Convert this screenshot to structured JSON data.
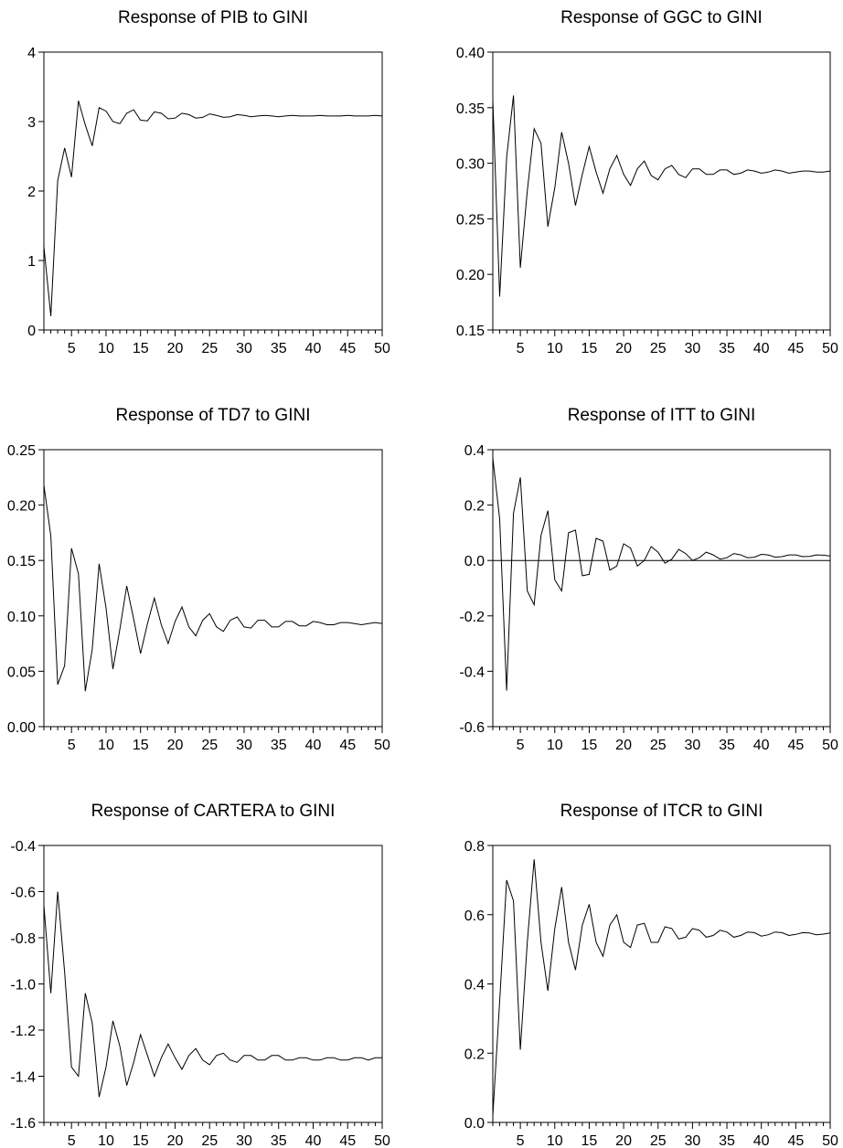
{
  "chart_data": [
    {
      "type": "line",
      "title": "Response of PIB to GINI",
      "ylim": [
        0,
        4
      ],
      "yticks": [
        0,
        1,
        2,
        3,
        4
      ],
      "ytick_labels": [
        "0",
        "1",
        "2",
        "3",
        "4"
      ],
      "xlim": [
        1,
        50
      ],
      "xtick_labels": [
        "5",
        "10",
        "15",
        "20",
        "25",
        "30",
        "35",
        "40",
        "45",
        "50"
      ],
      "zero_line": false,
      "series": [
        {
          "x": [
            1,
            2,
            3,
            4,
            5,
            6,
            7,
            8,
            9,
            10,
            11,
            12,
            13,
            14,
            15,
            16,
            17,
            18,
            19,
            20,
            21,
            22,
            23,
            24,
            25,
            26,
            27,
            28,
            29,
            30,
            31,
            32,
            33,
            34,
            35,
            36,
            37,
            38,
            39,
            40,
            41,
            42,
            43,
            44,
            45,
            46,
            47,
            48,
            49,
            50
          ],
          "values": [
            1.2,
            0.2,
            2.15,
            2.62,
            2.2,
            3.3,
            2.95,
            2.65,
            3.2,
            3.15,
            3.0,
            2.97,
            3.12,
            3.17,
            3.02,
            3.01,
            3.14,
            3.12,
            3.04,
            3.05,
            3.12,
            3.1,
            3.05,
            3.06,
            3.11,
            3.09,
            3.06,
            3.07,
            3.1,
            3.09,
            3.07,
            3.08,
            3.09,
            3.08,
            3.07,
            3.08,
            3.09,
            3.08,
            3.08,
            3.08,
            3.09,
            3.08,
            3.08,
            3.08,
            3.09,
            3.08,
            3.08,
            3.08,
            3.09,
            3.08
          ]
        }
      ]
    },
    {
      "type": "line",
      "title": "Response of GGC to GINI",
      "ylim": [
        0.15,
        0.4
      ],
      "yticks": [
        0.15,
        0.2,
        0.25,
        0.3,
        0.35,
        0.4
      ],
      "ytick_labels": [
        "0.15",
        "0.20",
        "0.25",
        "0.30",
        "0.35",
        "0.40"
      ],
      "xlim": [
        1,
        50
      ],
      "xtick_labels": [
        "5",
        "10",
        "15",
        "20",
        "25",
        "30",
        "35",
        "40",
        "45",
        "50"
      ],
      "zero_line": false,
      "series": [
        {
          "x": [
            1,
            2,
            3,
            4,
            5,
            6,
            7,
            8,
            9,
            10,
            11,
            12,
            13,
            14,
            15,
            16,
            17,
            18,
            19,
            20,
            21,
            22,
            23,
            24,
            25,
            26,
            27,
            28,
            29,
            30,
            31,
            32,
            33,
            34,
            35,
            36,
            37,
            38,
            39,
            40,
            41,
            42,
            43,
            44,
            45,
            46,
            47,
            48,
            49,
            50
          ],
          "values": [
            0.357,
            0.18,
            0.305,
            0.361,
            0.206,
            0.275,
            0.331,
            0.318,
            0.243,
            0.278,
            0.328,
            0.3,
            0.262,
            0.29,
            0.315,
            0.292,
            0.273,
            0.295,
            0.307,
            0.29,
            0.28,
            0.295,
            0.302,
            0.289,
            0.285,
            0.295,
            0.298,
            0.29,
            0.287,
            0.295,
            0.295,
            0.29,
            0.29,
            0.294,
            0.294,
            0.29,
            0.291,
            0.294,
            0.293,
            0.291,
            0.292,
            0.294,
            0.293,
            0.291,
            0.292,
            0.293,
            0.293,
            0.292,
            0.292,
            0.293
          ]
        }
      ]
    },
    {
      "type": "line",
      "title": "Response of TD7 to GINI",
      "ylim": [
        0,
        0.25
      ],
      "yticks": [
        0,
        0.05,
        0.1,
        0.15,
        0.2,
        0.25
      ],
      "ytick_labels": [
        "0.00",
        "0.05",
        "0.10",
        "0.15",
        "0.20",
        "0.25"
      ],
      "xlim": [
        1,
        50
      ],
      "xtick_labels": [
        "5",
        "10",
        "15",
        "20",
        "25",
        "30",
        "35",
        "40",
        "45",
        "50"
      ],
      "zero_line": false,
      "series": [
        {
          "x": [
            1,
            2,
            3,
            4,
            5,
            6,
            7,
            8,
            9,
            10,
            11,
            12,
            13,
            14,
            15,
            16,
            17,
            18,
            19,
            20,
            21,
            22,
            23,
            24,
            25,
            26,
            27,
            28,
            29,
            30,
            31,
            32,
            33,
            34,
            35,
            36,
            37,
            38,
            39,
            40,
            41,
            42,
            43,
            44,
            45,
            46,
            47,
            48,
            49,
            50
          ],
          "values": [
            0.218,
            0.172,
            0.038,
            0.055,
            0.161,
            0.138,
            0.032,
            0.07,
            0.147,
            0.107,
            0.052,
            0.088,
            0.127,
            0.097,
            0.066,
            0.093,
            0.116,
            0.092,
            0.075,
            0.095,
            0.108,
            0.09,
            0.082,
            0.096,
            0.102,
            0.09,
            0.086,
            0.096,
            0.099,
            0.09,
            0.089,
            0.096,
            0.096,
            0.09,
            0.09,
            0.095,
            0.095,
            0.091,
            0.091,
            0.095,
            0.094,
            0.092,
            0.092,
            0.094,
            0.094,
            0.093,
            0.092,
            0.093,
            0.094,
            0.093
          ]
        }
      ]
    },
    {
      "type": "line",
      "title": "Response of ITT to GINI",
      "ylim": [
        -0.6,
        0.4
      ],
      "yticks": [
        -0.6,
        -0.4,
        -0.2,
        0,
        0.2,
        0.4
      ],
      "ytick_labels": [
        "-0.6",
        "-0.4",
        "-0.2",
        "0.0",
        "0.2",
        "0.4"
      ],
      "xlim": [
        1,
        50
      ],
      "xtick_labels": [
        "5",
        "10",
        "15",
        "20",
        "25",
        "30",
        "35",
        "40",
        "45",
        "50"
      ],
      "zero_line": true,
      "series": [
        {
          "x": [
            1,
            2,
            3,
            4,
            5,
            6,
            7,
            8,
            9,
            10,
            11,
            12,
            13,
            14,
            15,
            16,
            17,
            18,
            19,
            20,
            21,
            22,
            23,
            24,
            25,
            26,
            27,
            28,
            29,
            30,
            31,
            32,
            33,
            34,
            35,
            36,
            37,
            38,
            39,
            40,
            41,
            42,
            43,
            44,
            45,
            46,
            47,
            48,
            49,
            50
          ],
          "values": [
            0.37,
            0.15,
            -0.47,
            0.17,
            0.3,
            -0.11,
            -0.16,
            0.09,
            0.18,
            -0.07,
            -0.11,
            0.1,
            0.11,
            -0.055,
            -0.05,
            0.08,
            0.07,
            -0.035,
            -0.02,
            0.06,
            0.045,
            -0.02,
            0.0,
            0.05,
            0.03,
            -0.01,
            0.005,
            0.04,
            0.025,
            0.0,
            0.01,
            0.03,
            0.02,
            0.005,
            0.01,
            0.025,
            0.02,
            0.01,
            0.012,
            0.022,
            0.02,
            0.012,
            0.014,
            0.02,
            0.02,
            0.014,
            0.015,
            0.02,
            0.019,
            0.016
          ]
        }
      ]
    },
    {
      "type": "line",
      "title": "Response of CARTERA to GINI",
      "ylim": [
        -1.6,
        -0.4
      ],
      "yticks": [
        -1.6,
        -1.4,
        -1.2,
        -1.0,
        -0.8,
        -0.6,
        -0.4
      ],
      "ytick_labels": [
        "-1.6",
        "-1.4",
        "-1.2",
        "-1.0",
        "-0.8",
        "-0.6",
        "-0.4"
      ],
      "xlim": [
        1,
        50
      ],
      "xtick_labels": [
        "5",
        "10",
        "15",
        "20",
        "25",
        "30",
        "35",
        "40",
        "45",
        "50"
      ],
      "zero_line": false,
      "series": [
        {
          "x": [
            1,
            2,
            3,
            4,
            5,
            6,
            7,
            8,
            9,
            10,
            11,
            12,
            13,
            14,
            15,
            16,
            17,
            18,
            19,
            20,
            21,
            22,
            23,
            24,
            25,
            26,
            27,
            28,
            29,
            30,
            31,
            32,
            33,
            34,
            35,
            36,
            37,
            38,
            39,
            40,
            41,
            42,
            43,
            44,
            45,
            46,
            47,
            48,
            49,
            50
          ],
          "values": [
            -0.66,
            -1.04,
            -0.6,
            -0.95,
            -1.36,
            -1.4,
            -1.04,
            -1.17,
            -1.49,
            -1.36,
            -1.16,
            -1.27,
            -1.44,
            -1.34,
            -1.22,
            -1.31,
            -1.4,
            -1.32,
            -1.26,
            -1.32,
            -1.37,
            -1.31,
            -1.28,
            -1.33,
            -1.35,
            -1.31,
            -1.3,
            -1.33,
            -1.34,
            -1.31,
            -1.31,
            -1.33,
            -1.33,
            -1.31,
            -1.31,
            -1.33,
            -1.33,
            -1.32,
            -1.32,
            -1.33,
            -1.33,
            -1.32,
            -1.32,
            -1.33,
            -1.33,
            -1.32,
            -1.32,
            -1.33,
            -1.32,
            -1.32
          ]
        }
      ]
    },
    {
      "type": "line",
      "title": "Response of ITCR to GINI",
      "ylim": [
        0,
        0.8
      ],
      "yticks": [
        0,
        0.2,
        0.4,
        0.6,
        0.8
      ],
      "ytick_labels": [
        "0.0",
        "0.2",
        "0.4",
        "0.6",
        "0.8"
      ],
      "xlim": [
        1,
        50
      ],
      "xtick_labels": [
        "5",
        "10",
        "15",
        "20",
        "25",
        "30",
        "35",
        "40",
        "45",
        "50"
      ],
      "zero_line": false,
      "series": [
        {
          "x": [
            1,
            2,
            3,
            4,
            5,
            6,
            7,
            8,
            9,
            10,
            11,
            12,
            13,
            14,
            15,
            16,
            17,
            18,
            19,
            20,
            21,
            22,
            23,
            24,
            25,
            26,
            27,
            28,
            29,
            30,
            31,
            32,
            33,
            34,
            35,
            36,
            37,
            38,
            39,
            40,
            41,
            42,
            43,
            44,
            45,
            46,
            47,
            48,
            49,
            50
          ],
          "values": [
            0.02,
            0.35,
            0.7,
            0.64,
            0.21,
            0.52,
            0.76,
            0.52,
            0.38,
            0.56,
            0.68,
            0.52,
            0.44,
            0.57,
            0.63,
            0.52,
            0.48,
            0.57,
            0.6,
            0.52,
            0.505,
            0.57,
            0.575,
            0.52,
            0.52,
            0.565,
            0.56,
            0.53,
            0.535,
            0.56,
            0.555,
            0.535,
            0.54,
            0.555,
            0.55,
            0.535,
            0.54,
            0.55,
            0.548,
            0.538,
            0.542,
            0.55,
            0.548,
            0.54,
            0.543,
            0.548,
            0.547,
            0.542,
            0.544,
            0.547
          ]
        }
      ]
    }
  ]
}
